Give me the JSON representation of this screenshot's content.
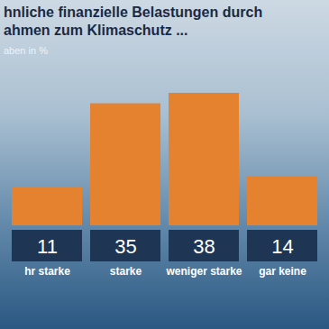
{
  "chart_data": {
    "type": "bar",
    "title": "hnliche finanzielle Belastungen durch ahmen zum Klimaschutz ...",
    "subtitle": "aben in %",
    "categories": [
      "hr starke",
      "starke",
      "weniger starke",
      "gar keine"
    ],
    "values": [
      11,
      35,
      38,
      14
    ],
    "color": "#e5822f",
    "ylim": [
      0,
      38
    ],
    "data_labels": true,
    "tick_labels": "x"
  }
}
